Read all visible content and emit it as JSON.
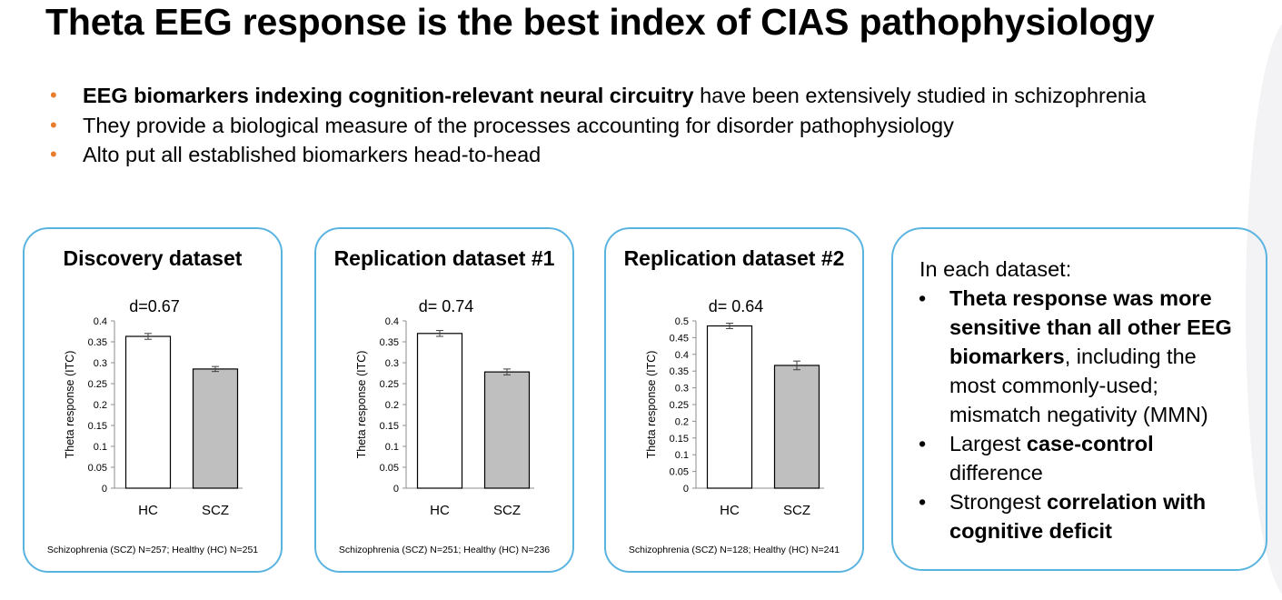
{
  "title": "Theta EEG response is the best index of CIAS pathophysiology",
  "bullets": [
    {
      "bold": "EEG biomarkers indexing cognition-relevant neural circuitry",
      "text": " have been extensively studied in schizophrenia"
    },
    {
      "bold": "",
      "text": "They provide a biological measure of the processes accounting for disorder pathophysiology"
    },
    {
      "bold": "",
      "text": "Alto put all established biomarkers head-to-head"
    }
  ],
  "bullet_glyph": "•",
  "colors": {
    "accent_orange": "#e87d2c",
    "panel_border": "#5ab4e0",
    "hc_bar": "#ffffff",
    "scz_bar": "#bfbfbf"
  },
  "chart_data": [
    {
      "type": "bar",
      "title": "Discovery dataset",
      "annotation": "d=0.67",
      "ylabel": "Theta response (ITC)",
      "categories": [
        "HC",
        "SCZ"
      ],
      "values": [
        0.363,
        0.285
      ],
      "errors": [
        0.007,
        0.006
      ],
      "ylim": [
        0,
        0.4
      ],
      "ticks": [
        "0",
        "0.05",
        "0.1",
        "0.15",
        "0.2",
        "0.25",
        "0.3",
        "0.35",
        "0.4"
      ],
      "footnote": "Schizophrenia (SCZ) N=257; Healthy (HC) N=251"
    },
    {
      "type": "bar",
      "title": "Replication dataset #1",
      "annotation": "d= 0.74",
      "ylabel": "Theta response (ITC)",
      "categories": [
        "HC",
        "SCZ"
      ],
      "values": [
        0.37,
        0.278
      ],
      "errors": [
        0.007,
        0.007
      ],
      "ylim": [
        0,
        0.4
      ],
      "ticks": [
        "0",
        "0.05",
        "0.1",
        "0.15",
        "0.2",
        "0.25",
        "0.3",
        "0.35",
        "0.4"
      ],
      "footnote": "Schizophrenia (SCZ) N=251; Healthy (HC) N=236"
    },
    {
      "type": "bar",
      "title": "Replication dataset #2",
      "annotation": "d= 0.64",
      "ylabel": "Theta response (ITC)",
      "categories": [
        "HC",
        "SCZ"
      ],
      "values": [
        0.485,
        0.367
      ],
      "errors": [
        0.008,
        0.013
      ],
      "ylim": [
        0,
        0.5
      ],
      "ticks": [
        "0",
        "0.05",
        "0.1",
        "0.15",
        "0.2",
        "0.25",
        "0.3",
        "0.35",
        "0.4",
        "0.45",
        "0.5"
      ],
      "footnote": "Schizophrenia (SCZ) N=128; Healthy (HC) N=241"
    }
  ],
  "summary": {
    "intro": "In each dataset:",
    "bullet_glyph": "•",
    "items": [
      {
        "bold": "Theta response was more sensitive than all other EEG biomarkers",
        "text": ", including the most commonly-used; mismatch negativity (MMN)"
      },
      {
        "pre": "Largest ",
        "bold": "case-control",
        "text": " difference"
      },
      {
        "pre": "Strongest ",
        "bold": "correlation with cognitive deficit",
        "text": ""
      }
    ]
  }
}
